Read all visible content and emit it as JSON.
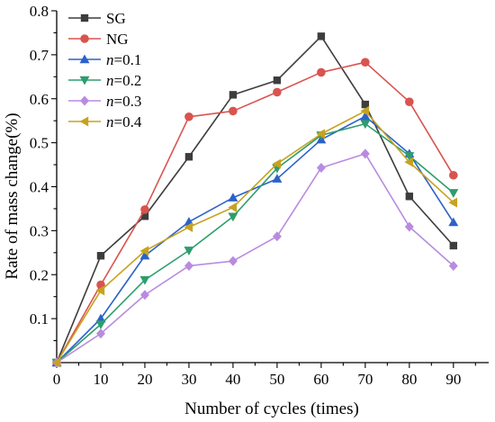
{
  "chart_data": {
    "type": "line",
    "xlabel": "Number of cycles (times)",
    "ylabel": "Rate of mass change(%)",
    "xlim": [
      0,
      98
    ],
    "ylim": [
      0,
      0.8
    ],
    "xticks": [
      0,
      10,
      20,
      30,
      40,
      50,
      60,
      70,
      80,
      90
    ],
    "xtick_labels": [
      "0",
      "10",
      "20",
      "30",
      "40",
      "50",
      "60",
      "70",
      "80",
      "90"
    ],
    "yticks": [
      0.1,
      0.2,
      0.3,
      0.4,
      0.5,
      0.6,
      0.7,
      0.8
    ],
    "ytick_labels": [
      "0.1",
      "0.2",
      "0.3",
      "0.4",
      "0.5",
      "0.6",
      "0.7",
      "0.8"
    ],
    "x": [
      0,
      10,
      20,
      30,
      40,
      50,
      60,
      70,
      80,
      90
    ],
    "grid": false,
    "legend_position": "top-left",
    "series": [
      {
        "name": "SG",
        "legend_prefix": "",
        "legend_suffix": "",
        "color": "#3d3d3d",
        "marker": "square",
        "values": [
          0,
          0.243,
          0.333,
          0.468,
          0.609,
          0.642,
          0.742,
          0.587,
          0.378,
          0.266
        ]
      },
      {
        "name": "NG",
        "legend_prefix": "",
        "legend_suffix": "",
        "color": "#d9534f",
        "marker": "circle",
        "values": [
          0,
          0.177,
          0.348,
          0.559,
          0.572,
          0.615,
          0.66,
          0.683,
          0.593,
          0.426
        ]
      },
      {
        "name": "n=0.1",
        "legend_prefix": "n",
        "legend_suffix": "=0.1",
        "color": "#2b62c9",
        "marker": "triangle-up",
        "values": [
          0,
          0.1,
          0.243,
          0.32,
          0.375,
          0.418,
          0.507,
          0.56,
          0.475,
          0.319
        ]
      },
      {
        "name": "n=0.2",
        "legend_prefix": "n",
        "legend_suffix": "=0.2",
        "color": "#2e9d6e",
        "marker": "triangle-down",
        "values": [
          0,
          0.087,
          0.188,
          0.255,
          0.332,
          0.442,
          0.517,
          0.543,
          0.47,
          0.386
        ]
      },
      {
        "name": "n=0.3",
        "legend_prefix": "n",
        "legend_suffix": "=0.3",
        "color": "#b98be0",
        "marker": "diamond",
        "values": [
          0,
          0.066,
          0.154,
          0.22,
          0.231,
          0.287,
          0.443,
          0.475,
          0.309,
          0.22
        ]
      },
      {
        "name": "n=0.4",
        "legend_prefix": "n",
        "legend_suffix": "=0.4",
        "color": "#c7a21f",
        "marker": "triangle-left",
        "values": [
          0,
          0.164,
          0.254,
          0.308,
          0.353,
          0.452,
          0.52,
          0.572,
          0.456,
          0.364
        ]
      }
    ]
  }
}
